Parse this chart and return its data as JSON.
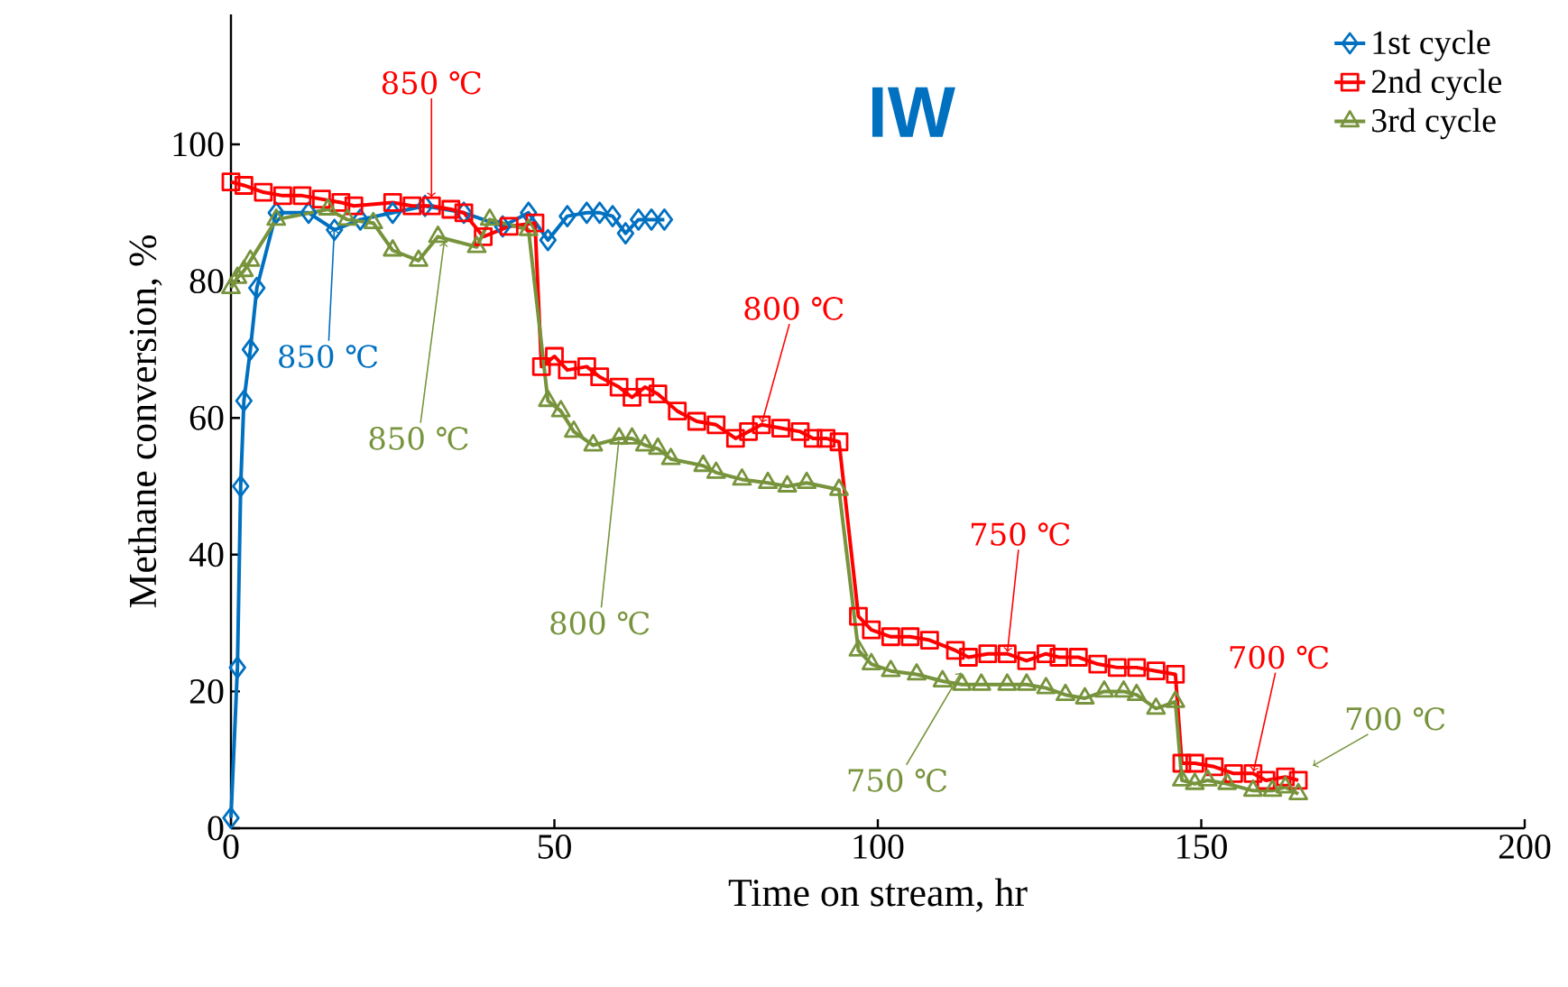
{
  "chart_data": {
    "type": "line",
    "title": "IW",
    "xlabel": "Time on stream, hr",
    "ylabel": "Methane conversion, %",
    "xlim": [
      0,
      200
    ],
    "xticks": [
      0,
      50,
      100,
      150,
      200
    ],
    "ylim": [
      0,
      119
    ],
    "yticks": [
      0,
      20,
      40,
      60,
      80,
      100
    ],
    "legend": "top right",
    "grid": false,
    "series": [
      {
        "name": "1st cycle",
        "color": "#0070c0",
        "marker": "diamond",
        "x": [
          0,
          1,
          1.5,
          2,
          3,
          4,
          7,
          12,
          16,
          20,
          25,
          30,
          36,
          42,
          46,
          49,
          52,
          55,
          57,
          59,
          61,
          63,
          65,
          67
        ],
        "values": [
          1.5,
          23.5,
          50,
          62.5,
          70,
          79,
          90,
          90,
          87.5,
          89,
          90,
          91,
          90,
          88,
          90,
          86,
          89.5,
          90,
          90,
          89.5,
          87,
          89,
          89,
          89
        ]
      },
      {
        "name": "2nd cycle",
        "color": "#ff0000",
        "marker": "square",
        "x": [
          0,
          2,
          5,
          8,
          11,
          14,
          17,
          19,
          25,
          28,
          31,
          34,
          36,
          39,
          43,
          47,
          48,
          50,
          52,
          55,
          57,
          60,
          62,
          64,
          66,
          69,
          72,
          75,
          78,
          80,
          82,
          85,
          88,
          90,
          92,
          94,
          97,
          99,
          102,
          105,
          108,
          112,
          114,
          117,
          120,
          123,
          126,
          128,
          131,
          134,
          137,
          140,
          143,
          146,
          147,
          149,
          152,
          155,
          158,
          160,
          163,
          165
        ],
        "values": [
          94.5,
          94,
          93,
          92.5,
          92.5,
          92,
          91.5,
          91,
          91.5,
          91,
          91,
          90.5,
          90,
          86.5,
          88,
          88.5,
          67.5,
          69,
          67,
          67.5,
          66,
          64.5,
          63,
          64.5,
          63.5,
          61,
          59.5,
          59,
          57,
          58,
          59,
          58.5,
          58,
          57,
          57,
          56.5,
          31,
          29,
          28,
          28,
          27.5,
          26,
          25,
          25.5,
          25.5,
          24.5,
          25.5,
          25,
          25,
          24,
          23.5,
          23.5,
          23,
          22.5,
          9.5,
          9.5,
          9,
          8,
          8,
          7,
          7.5,
          7
        ]
      },
      {
        "name": "3rd cycle",
        "color": "#77933c",
        "marker": "triangle",
        "x": [
          0,
          1,
          2,
          3,
          7,
          15,
          18,
          22,
          25,
          29,
          32,
          38,
          40,
          46,
          49,
          51,
          53,
          56,
          60,
          62,
          64,
          66,
          68,
          73,
          75,
          79,
          83,
          86,
          89,
          94,
          97,
          99,
          102,
          106,
          110,
          113,
          116,
          120,
          123,
          126,
          129,
          132,
          135,
          138,
          140,
          143,
          146,
          147,
          149,
          151,
          154,
          158,
          161,
          163,
          165
        ],
        "values": [
          79,
          80.5,
          81.5,
          83,
          89,
          90.5,
          89,
          88.5,
          84.5,
          83,
          86.5,
          85,
          89,
          87.5,
          62.5,
          61,
          58,
          56,
          57,
          57,
          56,
          55.5,
          54,
          53,
          52,
          51,
          50.5,
          50,
          50.5,
          49.5,
          26,
          24,
          23,
          22.5,
          21.5,
          21,
          21,
          21,
          21,
          20.5,
          19.5,
          19,
          20,
          20,
          19.5,
          17.5,
          18.5,
          7,
          6.5,
          7,
          6.5,
          5.5,
          5.5,
          6,
          5
        ]
      }
    ],
    "annotations": [
      {
        "text": "850 ℃",
        "x": 31,
        "y": 92
      },
      {
        "text": "850 ℃",
        "x": 16,
        "y": 88
      },
      {
        "text": "850 ℃",
        "x": 33,
        "y": 86
      },
      {
        "text": "800 ℃",
        "x": 82,
        "y": 59
      },
      {
        "text": "800 ℃",
        "x": 60,
        "y": 57
      },
      {
        "text": "750 ℃",
        "x": 120,
        "y": 25.5
      },
      {
        "text": "750 ℃",
        "x": 113,
        "y": 23
      },
      {
        "text": "700 ℃",
        "x": 158,
        "y": 8
      },
      {
        "text": "700 ℃",
        "x": 167,
        "y": 9
      }
    ]
  }
}
